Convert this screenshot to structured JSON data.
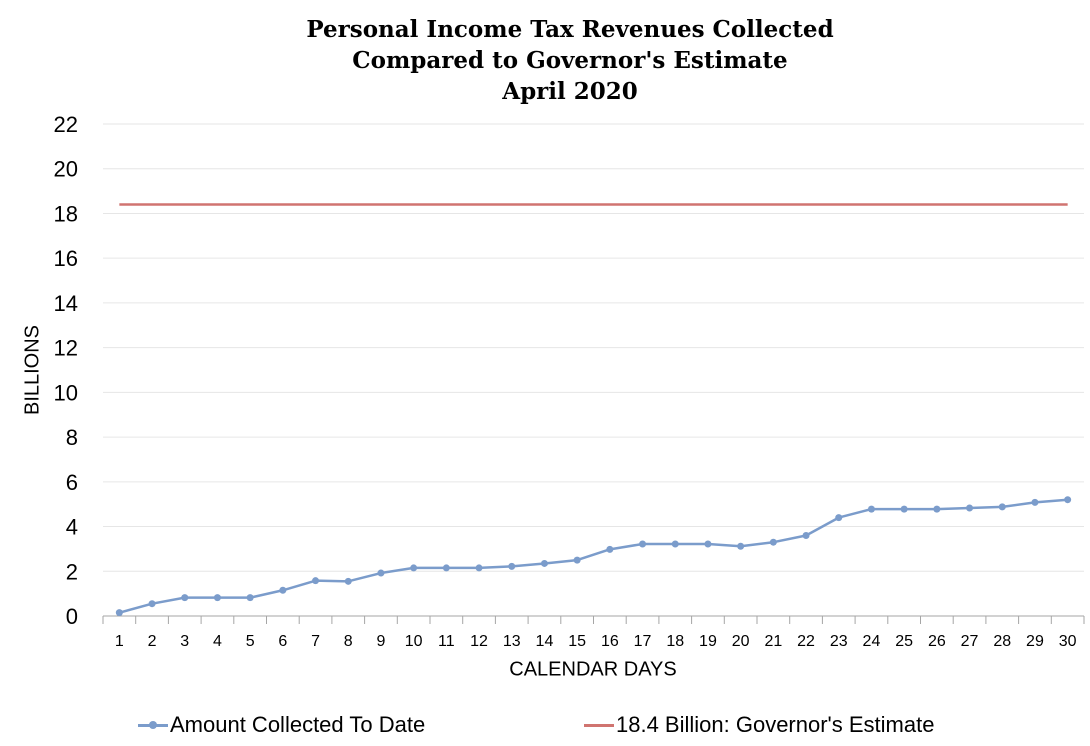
{
  "chart_data": {
    "type": "line",
    "title": [
      "Personal Income Tax Revenues Collected",
      "Compared to Governor's Estimate",
      "April 2020"
    ],
    "xlabel": "CALENDAR DAYS",
    "ylabel": "BILLIONS",
    "ylim": [
      0,
      22
    ],
    "yticks": [
      0,
      2,
      4,
      6,
      8,
      10,
      12,
      14,
      16,
      18,
      20,
      22
    ],
    "categories": [
      "1",
      "2",
      "3",
      "4",
      "5",
      "6",
      "7",
      "8",
      "9",
      "10",
      "11",
      "12",
      "13",
      "14",
      "15",
      "16",
      "17",
      "18",
      "19",
      "20",
      "21",
      "22",
      "23",
      "24",
      "25",
      "26",
      "27",
      "28",
      "29",
      "30"
    ],
    "grid": true,
    "legend_position": "bottom",
    "series": [
      {
        "name": "Amount Collected To Date",
        "color": "#7b9ccb",
        "markers": true,
        "values": [
          0.15,
          0.55,
          0.82,
          0.82,
          0.82,
          1.15,
          1.58,
          1.55,
          1.92,
          2.15,
          2.15,
          2.15,
          2.22,
          2.35,
          2.5,
          2.98,
          3.22,
          3.22,
          3.22,
          3.12,
          3.3,
          3.6,
          4.4,
          4.78,
          4.78,
          4.78,
          4.83,
          4.88,
          5.08,
          5.2
        ]
      },
      {
        "name": "18.4 Billion: Governor's Estimate",
        "color": "#d07470",
        "markers": false,
        "values": [
          18.4,
          18.4,
          18.4,
          18.4,
          18.4,
          18.4,
          18.4,
          18.4,
          18.4,
          18.4,
          18.4,
          18.4,
          18.4,
          18.4,
          18.4,
          18.4,
          18.4,
          18.4,
          18.4,
          18.4,
          18.4,
          18.4,
          18.4,
          18.4,
          18.4,
          18.4,
          18.4,
          18.4,
          18.4,
          18.4
        ]
      }
    ]
  }
}
